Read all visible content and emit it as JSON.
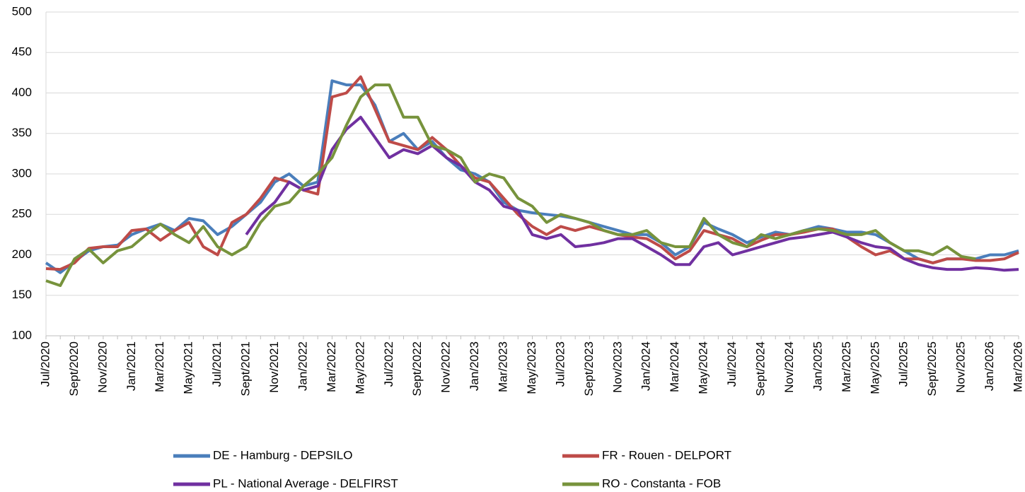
{
  "chart_data": {
    "type": "line",
    "categories": [
      "Jul/2020",
      null,
      "Sept/2020",
      null,
      "Nov/2020",
      null,
      "Jan/2021",
      null,
      "Mar/2021",
      null,
      "May/2021",
      null,
      "Jul/2021",
      null,
      "Sept/2021",
      null,
      "Nov/2021",
      null,
      "Jan/2022",
      null,
      "Mar/2022",
      null,
      "May/2022",
      null,
      "Jul/2022",
      null,
      "Sept/2022",
      null,
      "Nov/2022",
      null,
      "Jan/2023",
      null,
      "Mar/2023",
      null,
      "May/2023",
      null,
      "Jul/2023",
      null,
      "Sept/2023",
      null,
      "Nov/2023",
      null,
      "Jan/2024",
      null,
      "Mar/2024",
      null,
      "May/2024",
      null,
      "Jul/2024",
      null,
      "Sept/2024",
      null,
      "Nov/2024",
      null,
      "Jan/2025",
      null,
      "Mar/2025",
      null,
      "May/2025",
      null,
      "Jul/2025",
      null,
      "Sept/2025",
      null,
      "Nov/2025",
      null,
      "Jan/2026",
      null,
      "Mar/2026"
    ],
    "series": [
      {
        "name": "DE - Hamburg - DEPSILO",
        "color": "#4a7ebb",
        "values": [
          190,
          178,
          192,
          205,
          210,
          212,
          225,
          232,
          238,
          230,
          245,
          242,
          225,
          235,
          250,
          265,
          290,
          300,
          285,
          290,
          415,
          410,
          410,
          385,
          340,
          350,
          330,
          340,
          320,
          305,
          300,
          290,
          265,
          255,
          252,
          250,
          248,
          245,
          240,
          235,
          230,
          225,
          225,
          215,
          200,
          210,
          240,
          232,
          225,
          215,
          222,
          228,
          225,
          230,
          235,
          232,
          228,
          228,
          225,
          215,
          205,
          195,
          190,
          195,
          195,
          195,
          200,
          200,
          205
        ]
      },
      {
        "name": "FR - Rouen - DELPORT",
        "color": "#be4b48",
        "values": [
          183,
          182,
          190,
          208,
          210,
          210,
          230,
          232,
          218,
          230,
          240,
          210,
          200,
          240,
          250,
          270,
          295,
          290,
          280,
          275,
          395,
          400,
          420,
          380,
          340,
          335,
          330,
          345,
          330,
          310,
          295,
          290,
          270,
          250,
          235,
          225,
          235,
          230,
          235,
          230,
          225,
          222,
          220,
          210,
          195,
          205,
          230,
          225,
          220,
          210,
          218,
          225,
          225,
          228,
          232,
          232,
          222,
          210,
          200,
          205,
          195,
          195,
          190,
          195,
          195,
          193,
          193,
          195,
          203
        ]
      },
      {
        "name": "PL - National Average - DELFIRST",
        "color": "#7030a0",
        "values": [
          null,
          null,
          null,
          null,
          null,
          null,
          null,
          null,
          null,
          null,
          null,
          null,
          null,
          null,
          225,
          250,
          265,
          290,
          280,
          285,
          330,
          355,
          370,
          345,
          320,
          330,
          325,
          335,
          320,
          310,
          290,
          280,
          260,
          255,
          225,
          220,
          225,
          210,
          212,
          215,
          220,
          220,
          210,
          200,
          188,
          188,
          210,
          215,
          200,
          205,
          210,
          215,
          220,
          222,
          225,
          228,
          222,
          215,
          210,
          208,
          195,
          188,
          184,
          182,
          182,
          184,
          183,
          181,
          182
        ]
      },
      {
        "name": "RO - Constanta - FOB",
        "color": "#77933c",
        "values": [
          168,
          162,
          195,
          207,
          190,
          205,
          210,
          225,
          238,
          225,
          215,
          235,
          210,
          200,
          210,
          240,
          260,
          265,
          285,
          300,
          320,
          360,
          395,
          410,
          410,
          370,
          370,
          335,
          330,
          320,
          290,
          300,
          295,
          270,
          260,
          240,
          250,
          245,
          240,
          230,
          225,
          225,
          230,
          215,
          210,
          210,
          245,
          225,
          215,
          210,
          225,
          220,
          225,
          230,
          232,
          230,
          225,
          225,
          230,
          215,
          205,
          205,
          200,
          210,
          198,
          195,
          null,
          null,
          null
        ]
      }
    ],
    "ylim": [
      100,
      500
    ],
    "yticks": [
      100,
      150,
      200,
      250,
      300,
      350,
      400,
      450,
      500
    ],
    "grid": true
  }
}
